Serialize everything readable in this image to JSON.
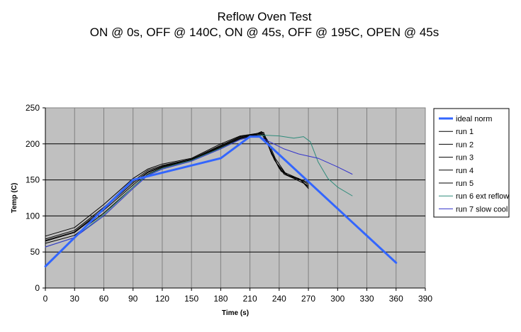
{
  "chart_data": {
    "type": "line",
    "title": "Reflow Oven Test",
    "subtitle": "ON @ 0s, OFF @ 140C, ON @ 45s, OFF @ 195C, OPEN @ 45s",
    "xlabel": "Time (s)",
    "ylabel": "Temp (C)",
    "xlim": [
      0,
      390
    ],
    "ylim": [
      0,
      250
    ],
    "xticks": [
      0,
      30,
      60,
      90,
      120,
      150,
      180,
      210,
      240,
      270,
      300,
      330,
      360,
      390
    ],
    "yticks": [
      0,
      50,
      100,
      150,
      200,
      250
    ],
    "grid": true,
    "legend_position": "right",
    "plot_background": "#c0c0c0",
    "series": [
      {
        "name": "ideal norm",
        "color": "#3366ff",
        "width": 3,
        "points": [
          [
            0,
            30
          ],
          [
            90,
            150
          ],
          [
            180,
            180
          ],
          [
            210,
            210
          ],
          [
            220,
            210
          ],
          [
            360,
            35
          ]
        ]
      },
      {
        "name": "run 1",
        "color": "#000000",
        "width": 1,
        "points": [
          [
            0,
            65
          ],
          [
            30,
            77
          ],
          [
            60,
            108
          ],
          [
            90,
            143
          ],
          [
            105,
            160
          ],
          [
            120,
            168
          ],
          [
            150,
            178
          ],
          [
            180,
            196
          ],
          [
            200,
            208
          ],
          [
            215,
            213
          ],
          [
            222,
            214
          ],
          [
            228,
            200
          ],
          [
            235,
            178
          ],
          [
            245,
            158
          ],
          [
            255,
            152
          ],
          [
            270,
            142
          ]
        ]
      },
      {
        "name": "run 2",
        "color": "#000000",
        "width": 1,
        "points": [
          [
            0,
            68
          ],
          [
            30,
            80
          ],
          [
            60,
            112
          ],
          [
            90,
            148
          ],
          [
            105,
            163
          ],
          [
            120,
            170
          ],
          [
            150,
            179
          ],
          [
            180,
            198
          ],
          [
            200,
            210
          ],
          [
            215,
            214
          ],
          [
            223,
            215
          ],
          [
            230,
            195
          ],
          [
            238,
            172
          ],
          [
            248,
            157
          ],
          [
            258,
            153
          ],
          [
            270,
            146
          ]
        ]
      },
      {
        "name": "run 3",
        "color": "#000000",
        "width": 1,
        "points": [
          [
            0,
            72
          ],
          [
            30,
            84
          ],
          [
            60,
            116
          ],
          [
            90,
            152
          ],
          [
            105,
            165
          ],
          [
            120,
            172
          ],
          [
            150,
            180
          ],
          [
            180,
            200
          ],
          [
            200,
            211
          ],
          [
            215,
            214
          ],
          [
            224,
            216
          ],
          [
            231,
            190
          ],
          [
            240,
            166
          ],
          [
            250,
            155
          ],
          [
            260,
            152
          ],
          [
            270,
            140
          ]
        ]
      },
      {
        "name": "run 4",
        "color": "#000000",
        "width": 1,
        "points": [
          [
            0,
            62
          ],
          [
            30,
            73
          ],
          [
            60,
            104
          ],
          [
            90,
            140
          ],
          [
            105,
            158
          ],
          [
            120,
            167
          ],
          [
            150,
            177
          ],
          [
            180,
            195
          ],
          [
            200,
            207
          ],
          [
            215,
            212
          ],
          [
            225,
            213
          ],
          [
            232,
            186
          ],
          [
            242,
            162
          ],
          [
            252,
            154
          ],
          [
            262,
            150
          ],
          [
            270,
            138
          ]
        ]
      },
      {
        "name": "run 5",
        "color": "#000000",
        "width": 1,
        "points": [
          [
            0,
            66
          ],
          [
            30,
            78
          ],
          [
            60,
            110
          ],
          [
            90,
            146
          ],
          [
            105,
            161
          ],
          [
            120,
            169
          ],
          [
            150,
            178
          ],
          [
            180,
            197
          ],
          [
            200,
            209
          ],
          [
            215,
            213
          ],
          [
            222,
            217
          ],
          [
            228,
            205
          ],
          [
            236,
            180
          ],
          [
            246,
            160
          ],
          [
            256,
            154
          ],
          [
            270,
            144
          ]
        ]
      },
      {
        "name": "run 6 ext reflow",
        "color": "#2e8b7a",
        "width": 1,
        "points": [
          [
            0,
            57
          ],
          [
            30,
            70
          ],
          [
            60,
            102
          ],
          [
            90,
            140
          ],
          [
            105,
            157
          ],
          [
            120,
            166
          ],
          [
            150,
            177
          ],
          [
            180,
            194
          ],
          [
            200,
            206
          ],
          [
            215,
            211
          ],
          [
            225,
            212
          ],
          [
            240,
            211
          ],
          [
            255,
            208
          ],
          [
            265,
            210
          ],
          [
            272,
            203
          ],
          [
            280,
            175
          ],
          [
            290,
            152
          ],
          [
            300,
            140
          ],
          [
            315,
            128
          ]
        ]
      },
      {
        "name": "run 7 slow cool",
        "color": "#3333cc",
        "width": 1,
        "points": [
          [
            0,
            57
          ],
          [
            30,
            70
          ],
          [
            60,
            100
          ],
          [
            90,
            138
          ],
          [
            105,
            156
          ],
          [
            120,
            165
          ],
          [
            150,
            176
          ],
          [
            180,
            193
          ],
          [
            200,
            206
          ],
          [
            215,
            211
          ],
          [
            220,
            210
          ],
          [
            230,
            203
          ],
          [
            245,
            193
          ],
          [
            260,
            186
          ],
          [
            280,
            180
          ],
          [
            300,
            168
          ],
          [
            315,
            158
          ]
        ]
      }
    ]
  }
}
